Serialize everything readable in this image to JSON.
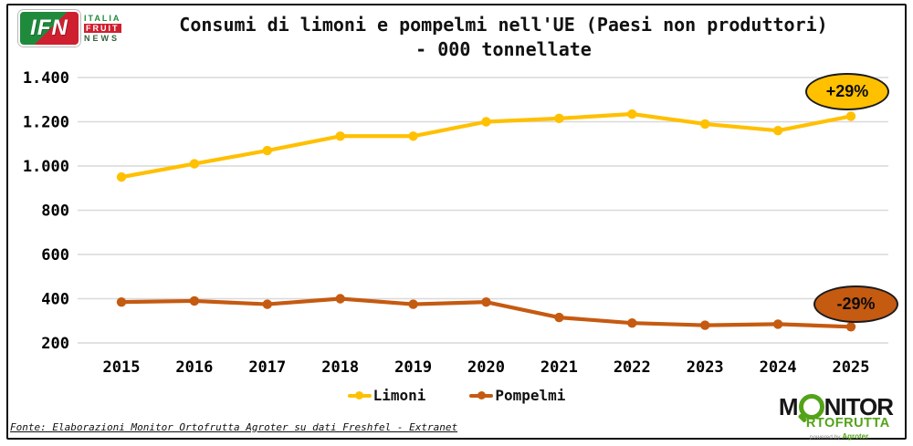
{
  "header": {
    "logo": {
      "acronym": "IFN",
      "line1": "ITALIA",
      "line2": "FRUIT",
      "line3": "NEWS"
    },
    "title_line1": "Consumi di limoni e pompelmi nell'UE (Paesi non produttori)",
    "title_line2": "- 000 tonnellate"
  },
  "chart_data": {
    "type": "line",
    "title": "Consumi di limoni e pompelmi nell'UE (Paesi non produttori) - 000 tonnellate",
    "categories": [
      "2015",
      "2016",
      "2017",
      "2018",
      "2019",
      "2020",
      "2021",
      "2022",
      "2023",
      "2024",
      "2025"
    ],
    "series": [
      {
        "name": "Limoni",
        "color": "#FFC000",
        "values": [
          950,
          1010,
          1070,
          1135,
          1135,
          1200,
          1215,
          1235,
          1190,
          1160,
          1225
        ]
      },
      {
        "name": "Pompelmi",
        "color": "#C55A11",
        "values": [
          385,
          390,
          375,
          400,
          375,
          385,
          315,
          290,
          280,
          285,
          273
        ]
      }
    ],
    "ylim": [
      200,
      1400
    ],
    "yticks": {
      "values": [
        1400,
        1200,
        1000,
        800,
        600,
        400,
        200
      ],
      "labels": [
        "1.400",
        "1.200",
        "1.000",
        "800",
        "600",
        "400",
        "200"
      ]
    },
    "grid": true,
    "legend_position": "bottom",
    "annotations": [
      {
        "text": "+29%",
        "series": "Limoni"
      },
      {
        "text": "-29%",
        "series": "Pompelmi"
      }
    ],
    "gridline_color": "#D9D9D9"
  },
  "badges": {
    "limoni": "+29%",
    "pompelmi": "-29%"
  },
  "footer": {
    "source": "Fonte: Elaborazioni Monitor Ortofrutta Agroter su dati Freshfel - Extranet"
  },
  "monitor_logo": {
    "m": "M",
    "nitor": "NITOR",
    "line2": "RTOFRUTTA",
    "powered_by": "powered by",
    "brand": "Agroter"
  }
}
